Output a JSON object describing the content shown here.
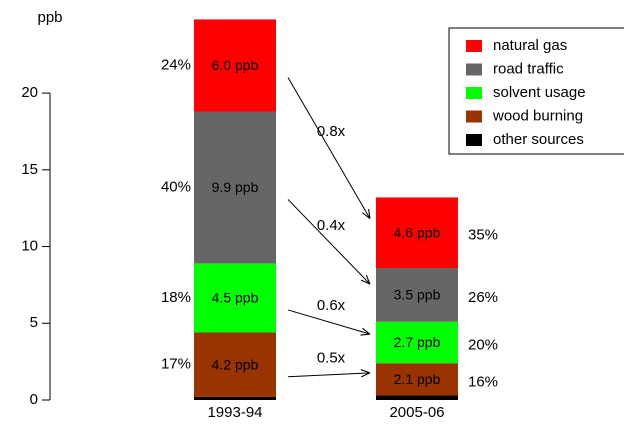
{
  "chart_data": {
    "type": "stacked-bar",
    "y_label": "ppb",
    "categories": [
      "1993-94",
      "2005-06"
    ],
    "series": [
      {
        "name": "natural gas",
        "color": "#ff0000",
        "values": [
          6.0,
          4.6
        ],
        "value_labels": [
          "6.0 ppb",
          "4.6 ppb"
        ],
        "share_labels": [
          "24%",
          "35%"
        ],
        "ratio_label": "0.8x"
      },
      {
        "name": "road traffic",
        "color": "#666666",
        "values": [
          9.9,
          3.5
        ],
        "value_labels": [
          "9.9 ppb",
          "3.5 ppb"
        ],
        "share_labels": [
          "40%",
          "26%"
        ],
        "ratio_label": "0.4x"
      },
      {
        "name": "solvent usage",
        "color": "#00ff00",
        "values": [
          4.5,
          2.7
        ],
        "value_labels": [
          "4.5 ppb",
          "2.7 ppb"
        ],
        "share_labels": [
          "18%",
          "20%"
        ],
        "ratio_label": "0.6x"
      },
      {
        "name": "wood burning",
        "color": "#993300",
        "values": [
          4.2,
          2.1
        ],
        "value_labels": [
          "4.2 ppb",
          "2.1 ppb"
        ],
        "share_labels": [
          "17%",
          "16%"
        ],
        "ratio_label": "0.5x"
      },
      {
        "name": "other sources",
        "color": "#000000",
        "values": [
          0.2,
          0.3
        ]
      }
    ],
    "ylim": [
      0,
      26
    ],
    "yticks": [
      0,
      5,
      10,
      15,
      20
    ]
  }
}
